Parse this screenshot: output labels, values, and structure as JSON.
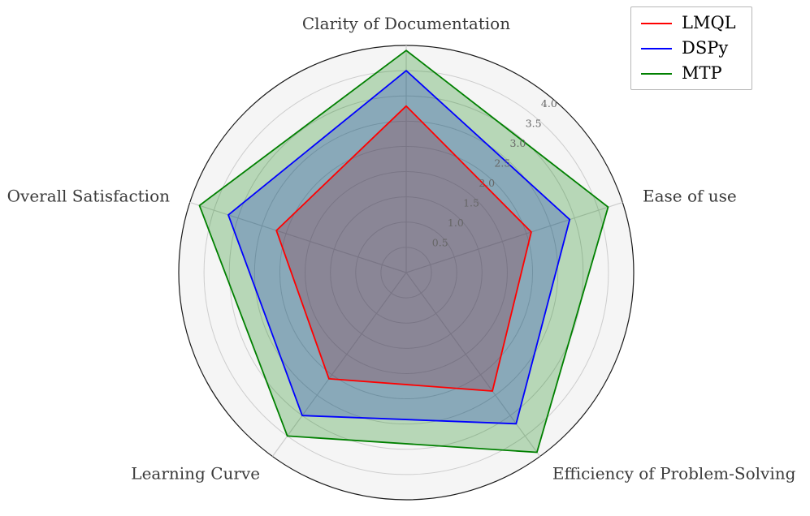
{
  "chart_data": {
    "type": "radar",
    "categories": [
      "Clarity of Documentation",
      "Ease of use",
      "Efficiency of Problem-Solving",
      "Learning Curve",
      "Overall Satisfaction"
    ],
    "series": [
      {
        "name": "LMQL",
        "color": "#ff0000",
        "values": [
          3.3,
          2.6,
          2.9,
          2.6,
          2.7
        ]
      },
      {
        "name": "DSPy",
        "color": "#0000ff",
        "values": [
          4.0,
          3.4,
          3.7,
          3.5,
          3.7
        ]
      },
      {
        "name": "MTP",
        "color": "#008000",
        "values": [
          4.4,
          4.2,
          4.4,
          4.0,
          4.3
        ]
      }
    ],
    "radial_ticks": [
      0.5,
      1.0,
      1.5,
      2.0,
      2.5,
      3.0,
      3.5,
      4.0
    ],
    "rlim": [
      0,
      4.5
    ],
    "grid": true,
    "legend_position": "upper right",
    "fill_opacity": 0.25,
    "colors": {
      "plot_bg": "#f5f5f5",
      "grid": "#cdcdcd",
      "spine": "#1a1a1a",
      "tick_label": "#666666",
      "category_label": "#3a3a3a"
    }
  },
  "legend": {
    "items": [
      "LMQL",
      "DSPy",
      "MTP"
    ]
  }
}
